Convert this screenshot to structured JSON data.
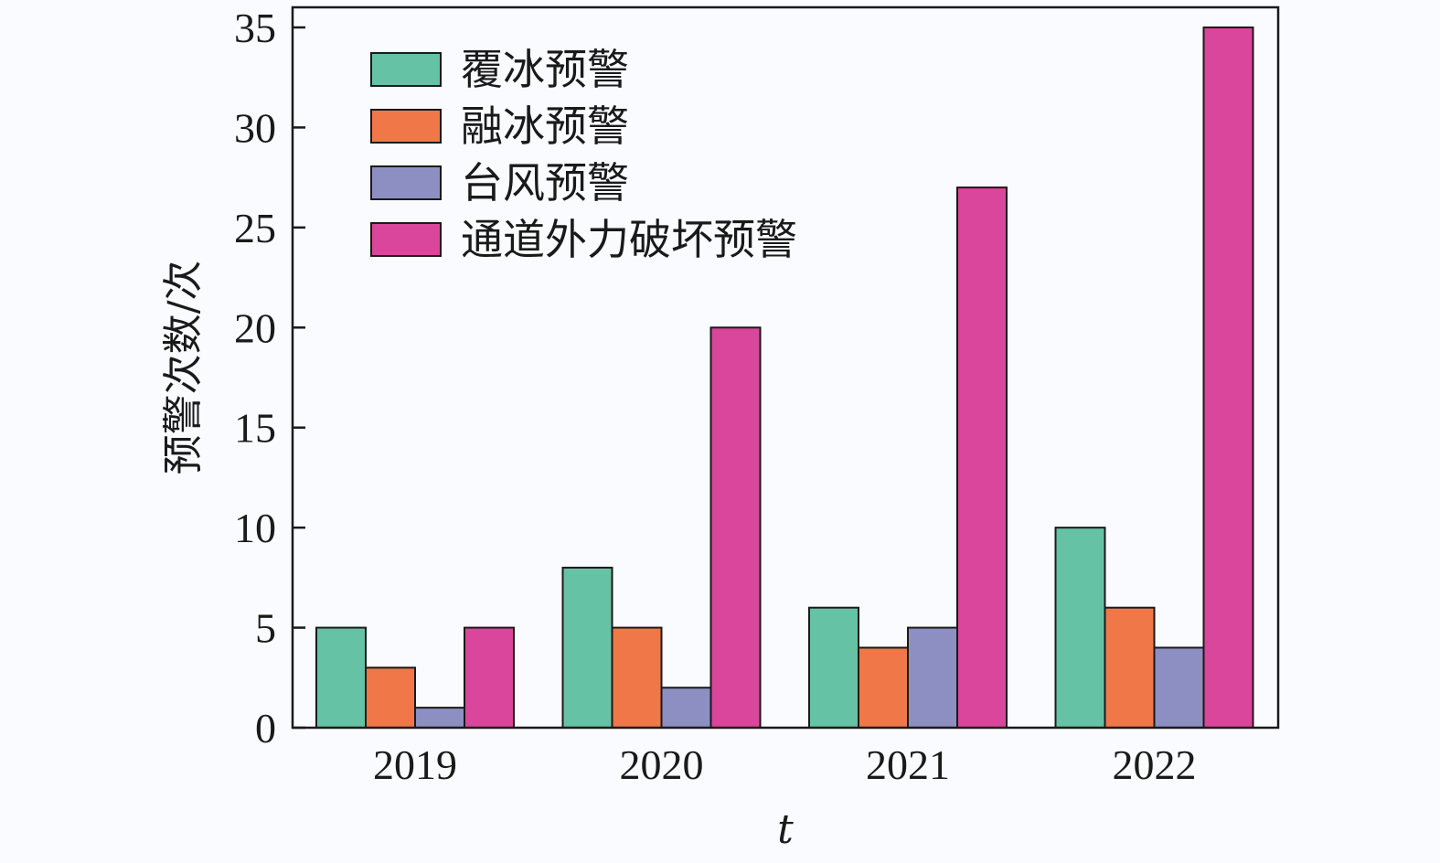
{
  "chart_data": {
    "type": "bar",
    "categories": [
      "2019",
      "2020",
      "2021",
      "2022"
    ],
    "series": [
      {
        "name": "覆冰预警",
        "values": [
          5,
          8,
          6,
          10
        ],
        "color": "#66c2a5"
      },
      {
        "name": "融冰预警",
        "values": [
          3,
          5,
          4,
          6
        ],
        "color": "#f07848"
      },
      {
        "name": "台风预警",
        "values": [
          1,
          2,
          5,
          4
        ],
        "color": "#8d8fc2"
      },
      {
        "name": "通道外力破坏预警",
        "values": [
          5,
          20,
          27,
          35
        ],
        "color": "#d9469b"
      }
    ],
    "xlabel": "t",
    "ylabel": "预警次数/次",
    "ylim": [
      0,
      35
    ],
    "yticks": [
      0,
      5,
      10,
      15,
      20,
      25,
      30,
      35
    ],
    "grid": false,
    "legend_position": "top-left"
  }
}
